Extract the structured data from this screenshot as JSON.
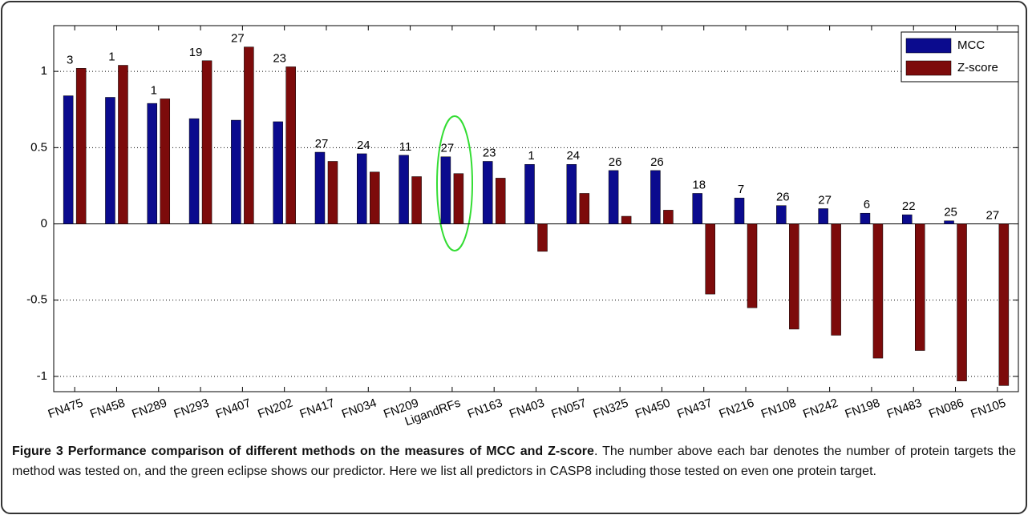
{
  "chart_data": {
    "type": "bar",
    "categories": [
      "FN475",
      "FN458",
      "FN289",
      "FN293",
      "FN407",
      "FN202",
      "FN417",
      "FN034",
      "FN209",
      "LigandRFs",
      "FN163",
      "FN403",
      "FN057",
      "FN325",
      "FN450",
      "FN437",
      "FN216",
      "FN108",
      "FN242",
      "FN198",
      "FN483",
      "FN086",
      "FN105"
    ],
    "series": [
      {
        "name": "MCC",
        "color": "#0b0b8e",
        "values": [
          0.84,
          0.83,
          0.79,
          0.69,
          0.68,
          0.67,
          0.47,
          0.46,
          0.45,
          0.44,
          0.41,
          0.39,
          0.39,
          0.35,
          0.35,
          0.2,
          0.17,
          0.12,
          0.1,
          0.07,
          0.06,
          0.02,
          0.0
        ]
      },
      {
        "name": "Z-score",
        "color": "#7d0b0b",
        "values": [
          1.02,
          1.04,
          0.82,
          1.07,
          1.16,
          1.03,
          0.41,
          0.34,
          0.31,
          0.33,
          0.3,
          -0.18,
          0.2,
          0.05,
          0.09,
          -0.46,
          -0.55,
          -0.69,
          -0.73,
          -0.88,
          -0.83,
          -1.03,
          -1.06
        ]
      }
    ],
    "annotations": [
      3,
      1,
      1,
      19,
      27,
      23,
      27,
      24,
      11,
      27,
      23,
      1,
      24,
      26,
      26,
      18,
      7,
      26,
      27,
      6,
      22,
      25,
      27
    ],
    "ylim": [
      -1.1,
      1.3
    ],
    "yticks": [
      -1,
      -0.5,
      0,
      0.5,
      1
    ],
    "grid": true,
    "legend": "upper right",
    "caption_title": "Figure 3 Performance comparison of different methods on the measures of MCC and Z-score",
    "caption_text": ". The number above each bar denotes the number of protein targets the method was tested on, and the green eclipse shows our predictor. Here we list all predictors in CASP8 including those tested on even one protein target."
  }
}
